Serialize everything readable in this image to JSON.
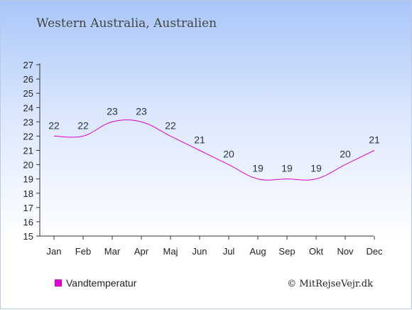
{
  "chart_data": {
    "type": "line",
    "title": "Western Australia, Australien",
    "categories": [
      "Jan",
      "Feb",
      "Mar",
      "Apr",
      "Maj",
      "Jun",
      "Jul",
      "Aug",
      "Sep",
      "Okt",
      "Nov",
      "Dec"
    ],
    "series": [
      {
        "name": "Vandtemperatur",
        "values": [
          22,
          22,
          23,
          23,
          22,
          21,
          20,
          19,
          19,
          19,
          20,
          21
        ],
        "color": "#e000cc"
      }
    ],
    "ylim": [
      15,
      27
    ],
    "yticks": [
      15,
      16,
      17,
      18,
      19,
      20,
      21,
      22,
      23,
      24,
      25,
      26,
      27
    ],
    "grid": false,
    "legend_position": "bottom-left"
  },
  "credit": "© MitRejseVejr.dk"
}
